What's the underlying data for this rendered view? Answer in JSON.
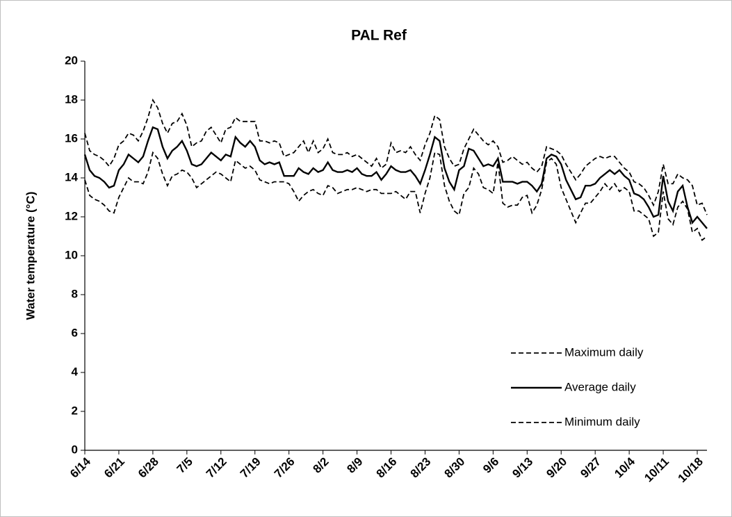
{
  "chart_data": {
    "type": "line",
    "title": "PAL Ref",
    "y_label": "Water temperature  (°C)",
    "categories": [
      "6/14",
      null,
      null,
      null,
      null,
      null,
      null,
      "6/21",
      null,
      null,
      null,
      null,
      null,
      null,
      "6/28",
      null,
      null,
      null,
      null,
      null,
      null,
      "7/5",
      null,
      null,
      null,
      null,
      null,
      null,
      "7/12",
      null,
      null,
      null,
      null,
      null,
      null,
      "7/19",
      null,
      null,
      null,
      null,
      null,
      null,
      "7/26",
      null,
      null,
      null,
      null,
      null,
      null,
      "8/2",
      null,
      null,
      null,
      null,
      null,
      null,
      "8/9",
      null,
      null,
      null,
      null,
      null,
      null,
      "8/16",
      null,
      null,
      null,
      null,
      null,
      null,
      "8/23",
      null,
      null,
      null,
      null,
      null,
      null,
      "8/30",
      null,
      null,
      null,
      null,
      null,
      null,
      "9/6",
      null,
      null,
      null,
      null,
      null,
      null,
      "9/13",
      null,
      null,
      null,
      null,
      null,
      null,
      "9/20",
      null,
      null,
      null,
      null,
      null,
      null,
      "9/27",
      null,
      null,
      null,
      null,
      null,
      null,
      "10/4",
      null,
      null,
      null,
      null,
      null,
      null,
      "10/11",
      null,
      null,
      null,
      null,
      null,
      null,
      "10/18",
      null,
      null
    ],
    "series": [
      {
        "name": "Maximum daily",
        "color": "#000000",
        "dashed": true,
        "values": [
          16.3,
          15.4,
          15.2,
          15.1,
          14.9,
          14.6,
          15.0,
          15.7,
          15.9,
          16.3,
          16.2,
          15.9,
          16.4,
          17.1,
          18.0,
          17.6,
          16.8,
          16.3,
          16.8,
          16.9,
          17.3,
          16.7,
          15.6,
          15.8,
          15.9,
          16.4,
          16.6,
          16.2,
          15.8,
          16.5,
          16.6,
          17.1,
          16.9,
          16.9,
          16.9,
          16.9,
          15.9,
          15.9,
          15.8,
          15.9,
          15.8,
          15.1,
          15.2,
          15.3,
          15.6,
          15.9,
          15.3,
          15.9,
          15.3,
          15.5,
          16.0,
          15.3,
          15.2,
          15.2,
          15.3,
          15.1,
          15.2,
          15.0,
          14.8,
          14.6,
          15.0,
          14.5,
          14.7,
          15.8,
          15.3,
          15.4,
          15.3,
          15.6,
          15.2,
          14.9,
          15.7,
          16.3,
          17.2,
          17.0,
          15.6,
          15.0,
          14.6,
          14.7,
          15.5,
          16.0,
          16.5,
          16.2,
          15.9,
          15.7,
          15.9,
          15.6,
          14.8,
          14.9,
          15.1,
          14.9,
          14.7,
          14.8,
          14.5,
          14.3,
          14.6,
          15.6,
          15.5,
          15.4,
          15.2,
          14.7,
          14.3,
          13.9,
          14.2,
          14.6,
          14.8,
          15.0,
          15.1,
          15.0,
          15.1,
          15.1,
          14.8,
          14.5,
          14.3,
          13.8,
          13.7,
          13.5,
          13.1,
          12.6,
          13.3,
          14.7,
          13.7,
          13.7,
          14.2,
          14.0,
          13.9,
          13.6,
          12.6,
          12.7,
          12.1
        ]
      },
      {
        "name": "Average daily",
        "color": "#000000",
        "dashed": false,
        "values": [
          15.2,
          14.4,
          14.1,
          14.0,
          13.8,
          13.5,
          13.6,
          14.4,
          14.7,
          15.2,
          15.0,
          14.8,
          15.1,
          15.9,
          16.6,
          16.5,
          15.6,
          15.0,
          15.4,
          15.6,
          15.9,
          15.4,
          14.7,
          14.6,
          14.7,
          15.0,
          15.3,
          15.1,
          14.9,
          15.2,
          15.1,
          16.1,
          15.8,
          15.6,
          15.9,
          15.6,
          14.9,
          14.7,
          14.8,
          14.7,
          14.8,
          14.1,
          14.1,
          14.1,
          14.5,
          14.3,
          14.2,
          14.5,
          14.3,
          14.4,
          14.8,
          14.4,
          14.3,
          14.3,
          14.4,
          14.3,
          14.5,
          14.2,
          14.1,
          14.1,
          14.3,
          13.9,
          14.2,
          14.6,
          14.4,
          14.3,
          14.3,
          14.4,
          14.1,
          13.7,
          14.4,
          15.2,
          16.1,
          15.9,
          14.5,
          13.8,
          13.4,
          14.4,
          14.6,
          15.5,
          15.4,
          15.0,
          14.6,
          14.7,
          14.6,
          15.0,
          13.8,
          13.8,
          13.8,
          13.7,
          13.8,
          13.8,
          13.6,
          13.3,
          13.7,
          15.0,
          15.2,
          15.1,
          14.7,
          13.9,
          13.4,
          12.9,
          13.0,
          13.6,
          13.6,
          13.7,
          14.0,
          14.2,
          14.4,
          14.2,
          14.4,
          14.1,
          13.9,
          13.2,
          13.1,
          12.9,
          12.5,
          12.0,
          12.1,
          14.1,
          12.8,
          12.3,
          13.3,
          13.6,
          12.5,
          11.7,
          12.0,
          11.7,
          11.4
        ]
      },
      {
        "name": "Minimum daily",
        "color": "#000000",
        "dashed": true,
        "values": [
          13.9,
          13.1,
          12.9,
          12.8,
          12.6,
          12.3,
          12.2,
          13.0,
          13.5,
          14.0,
          13.8,
          13.8,
          13.7,
          14.3,
          15.3,
          15.0,
          14.2,
          13.6,
          14.1,
          14.2,
          14.4,
          14.3,
          14.0,
          13.5,
          13.7,
          13.9,
          14.1,
          14.3,
          14.2,
          14.0,
          13.8,
          14.9,
          14.7,
          14.5,
          14.6,
          14.4,
          13.9,
          13.8,
          13.7,
          13.8,
          13.8,
          13.8,
          13.7,
          13.3,
          12.8,
          13.1,
          13.3,
          13.4,
          13.2,
          13.1,
          13.6,
          13.5,
          13.2,
          13.3,
          13.4,
          13.4,
          13.5,
          13.4,
          13.3,
          13.4,
          13.4,
          13.2,
          13.2,
          13.2,
          13.3,
          13.1,
          12.9,
          13.3,
          13.3,
          12.2,
          13.2,
          14.0,
          15.3,
          15.2,
          13.6,
          12.8,
          12.3,
          12.1,
          13.2,
          13.5,
          14.5,
          14.2,
          13.5,
          13.4,
          13.2,
          14.8,
          12.7,
          12.5,
          12.6,
          12.6,
          13.0,
          13.1,
          12.2,
          12.6,
          13.4,
          14.8,
          15.0,
          14.7,
          13.5,
          12.9,
          12.3,
          11.7,
          12.2,
          12.7,
          12.7,
          13.0,
          13.3,
          13.7,
          13.4,
          13.7,
          13.3,
          13.5,
          13.3,
          12.3,
          12.3,
          12.1,
          11.9,
          11.0,
          11.2,
          13.3,
          11.9,
          11.6,
          12.5,
          12.8,
          12.4,
          11.2,
          11.4,
          10.8,
          11.0
        ]
      }
    ],
    "ylim": [
      0,
      20
    ],
    "yticks": [
      0,
      2,
      4,
      6,
      8,
      10,
      12,
      14,
      16,
      18,
      20
    ],
    "grid": false
  }
}
